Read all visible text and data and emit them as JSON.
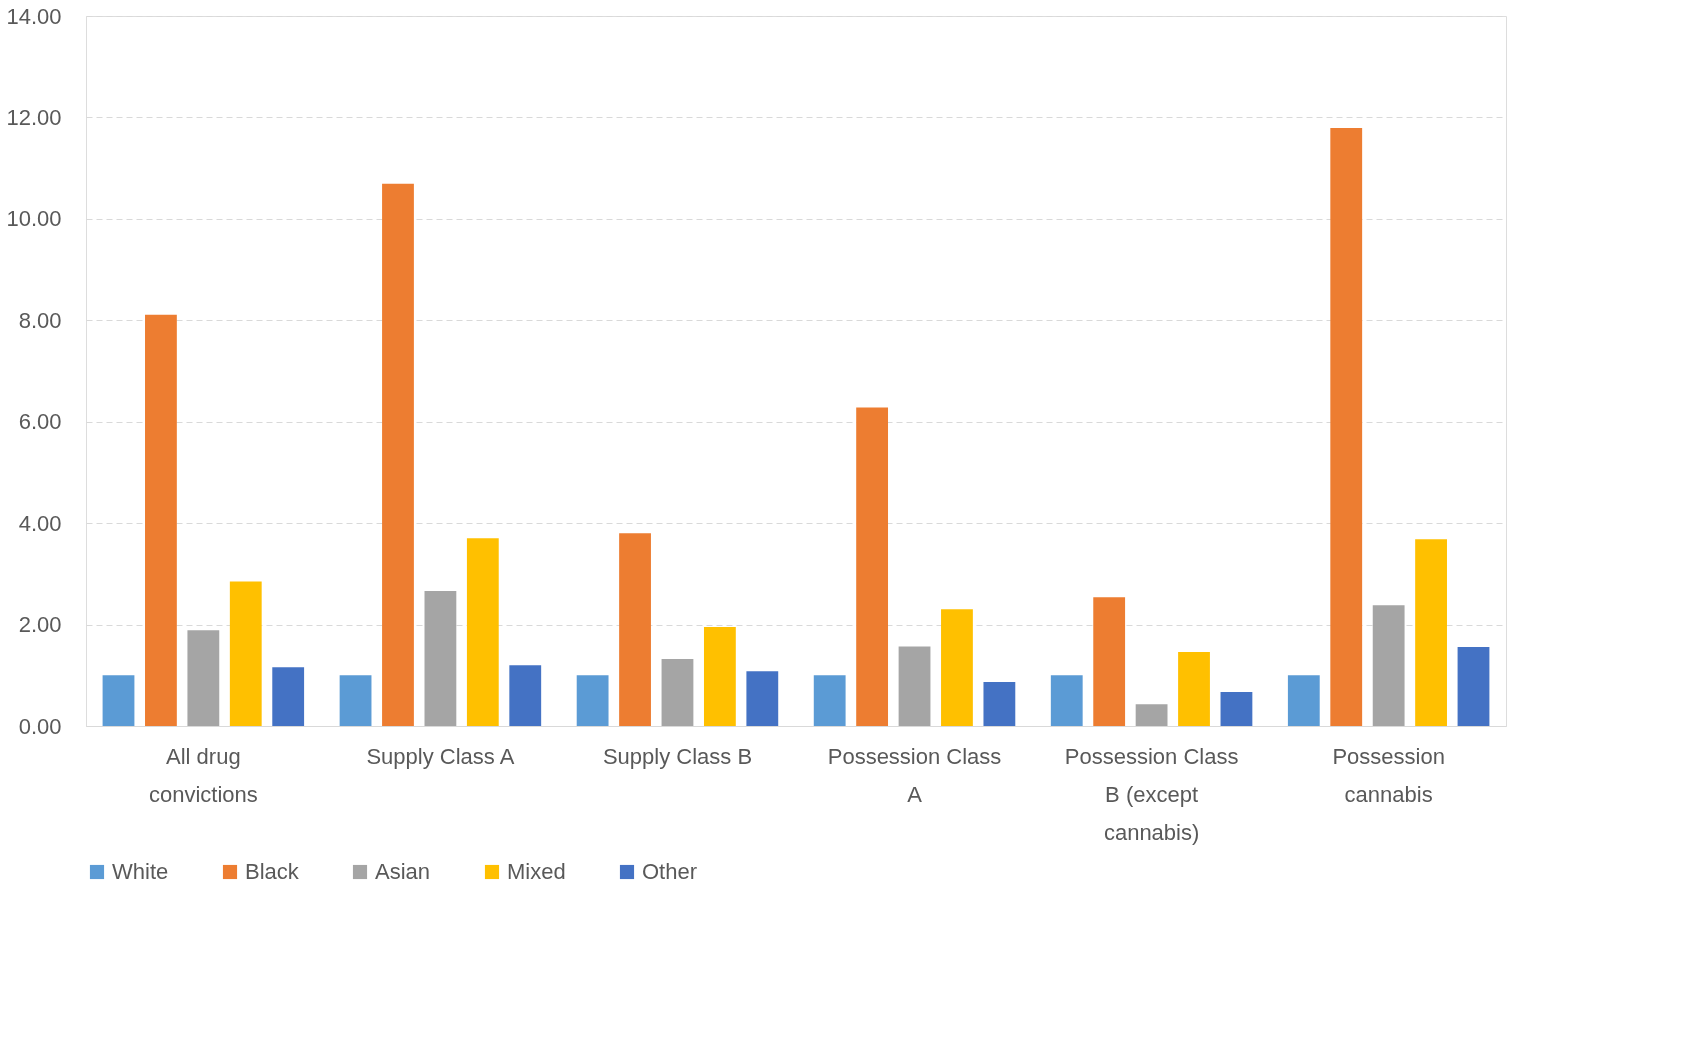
{
  "chart_data": {
    "type": "bar",
    "categories": [
      "All drug convictions",
      "Supply Class A",
      "Supply Class B",
      "Possession Class A",
      "Possession Class B (except cannabis)",
      "Possession cannabis"
    ],
    "series": [
      {
        "name": "White",
        "color": "#5b9bd5",
        "values": [
          1.0,
          1.0,
          1.0,
          1.0,
          1.0,
          1.0
        ]
      },
      {
        "name": "Black",
        "color": "#ed7d31",
        "values": [
          8.11,
          10.69,
          3.8,
          6.28,
          2.54,
          11.79
        ]
      },
      {
        "name": "Asian",
        "color": "#a5a5a5",
        "values": [
          1.89,
          2.66,
          1.32,
          1.57,
          0.43,
          2.38
        ]
      },
      {
        "name": "Mixed",
        "color": "#ffc000",
        "values": [
          2.85,
          3.7,
          1.95,
          2.3,
          1.46,
          3.68
        ]
      },
      {
        "name": "Other",
        "color": "#4472c4",
        "values": [
          1.16,
          1.2,
          1.08,
          0.87,
          0.67,
          1.56
        ]
      }
    ],
    "ylim": [
      0,
      14
    ],
    "yticks": [
      {
        "value": 0,
        "label": "0.00"
      },
      {
        "value": 2,
        "label": "2.00"
      },
      {
        "value": 4,
        "label": "4.00"
      },
      {
        "value": 6,
        "label": "6.00"
      },
      {
        "value": 8,
        "label": "8.00"
      },
      {
        "value": 10,
        "label": "10.00"
      },
      {
        "value": 12,
        "label": "12.00"
      },
      {
        "value": 14,
        "label": "14.00"
      }
    ],
    "grid": "y",
    "legend": "bottom"
  }
}
